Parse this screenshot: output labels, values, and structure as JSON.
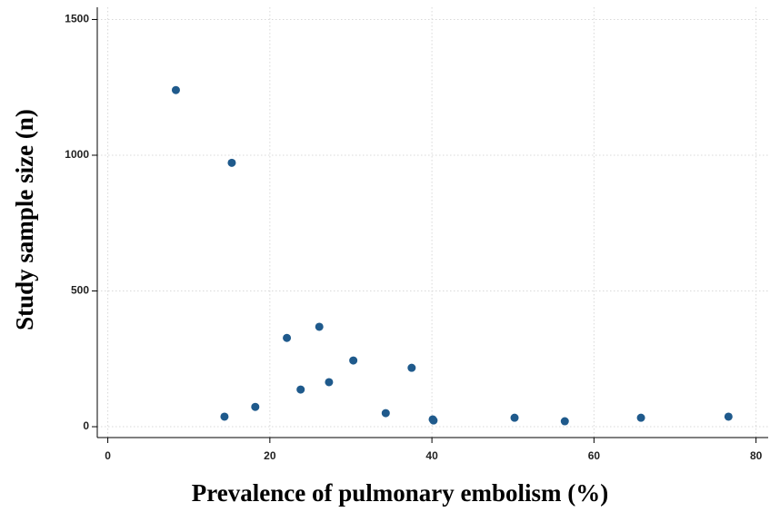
{
  "chart_data": {
    "type": "scatter",
    "x_label": "Prevalence of pulmonary embolism (%)",
    "y_label": "Study sample size (n)",
    "x": [
      8.4,
      15.3,
      14.4,
      18.2,
      22.1,
      23.8,
      26.1,
      27.3,
      30.3,
      34.3,
      37.5,
      40.2,
      40.1,
      50.2,
      56.4,
      65.8,
      76.6
    ],
    "y": [
      1240,
      972,
      37,
      73,
      327,
      137,
      368,
      164,
      244,
      50,
      217,
      23,
      27,
      33,
      20,
      33,
      37
    ],
    "color": "#1f5a8c",
    "xlim": [
      -1.3,
      81.5
    ],
    "xticks": [
      0,
      20,
      40,
      60,
      80
    ],
    "ylim": [
      -40,
      1545
    ],
    "yticks": [
      0,
      500,
      1000,
      1500
    ],
    "grid": true
  }
}
